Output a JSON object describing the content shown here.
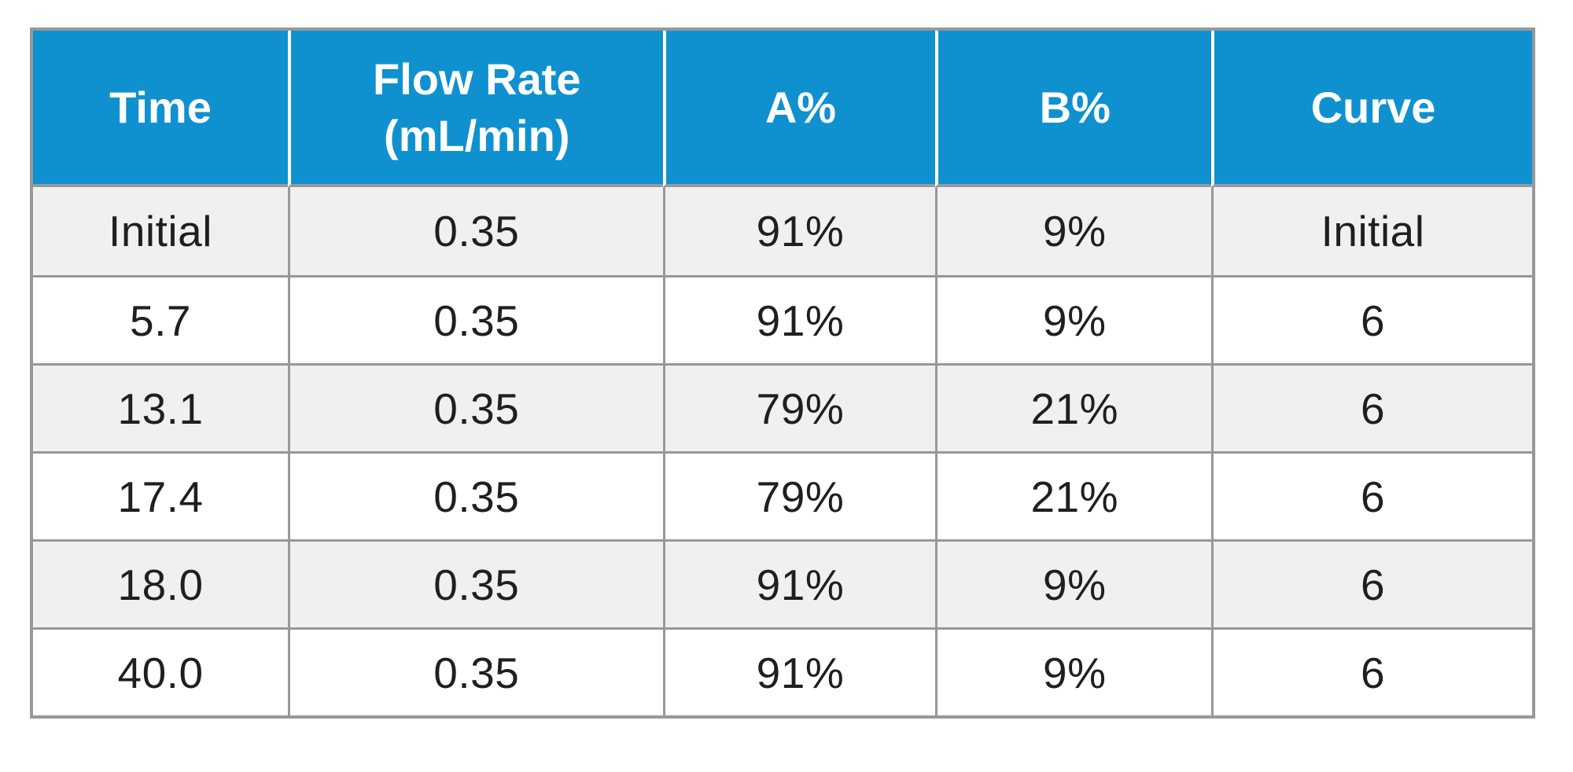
{
  "colors": {
    "header_bg": "#1091cf",
    "header_text": "#ffffff",
    "header_divider": "#ffffff",
    "border": "#97989c",
    "row_bg": "#ffffff",
    "row_alt_bg": "#f0f0f1",
    "body_text": "#1f1f21",
    "page_bg": "#ffffff"
  },
  "table": {
    "columns": [
      {
        "lines": [
          "Time"
        ]
      },
      {
        "lines": [
          "Flow Rate",
          "(mL/min)"
        ]
      },
      {
        "lines": [
          "A%"
        ]
      },
      {
        "lines": [
          "B%"
        ]
      },
      {
        "lines": [
          "Curve"
        ]
      }
    ],
    "rows": [
      [
        "Initial",
        "0.35",
        "91%",
        "9%",
        "Initial"
      ],
      [
        "5.7",
        "0.35",
        "91%",
        "9%",
        "6"
      ],
      [
        "13.1",
        "0.35",
        "79%",
        "21%",
        "6"
      ],
      [
        "17.4",
        "0.35",
        "79%",
        "21%",
        "6"
      ],
      [
        "18.0",
        "0.35",
        "91%",
        "9%",
        "6"
      ],
      [
        "40.0",
        "0.35",
        "91%",
        "9%",
        "6"
      ]
    ]
  },
  "chart_data": {
    "type": "table",
    "title": "",
    "columns": [
      "Time",
      "Flow Rate (mL/min)",
      "A%",
      "B%",
      "Curve"
    ],
    "rows": [
      [
        "Initial",
        "0.35",
        "91%",
        "9%",
        "Initial"
      ],
      [
        "5.7",
        "0.35",
        "91%",
        "9%",
        "6"
      ],
      [
        "13.1",
        "0.35",
        "79%",
        "21%",
        "6"
      ],
      [
        "17.4",
        "0.35",
        "79%",
        "21%",
        "6"
      ],
      [
        "18.0",
        "0.35",
        "91%",
        "9%",
        "6"
      ],
      [
        "40.0",
        "0.35",
        "91%",
        "9%",
        "6"
      ]
    ]
  }
}
